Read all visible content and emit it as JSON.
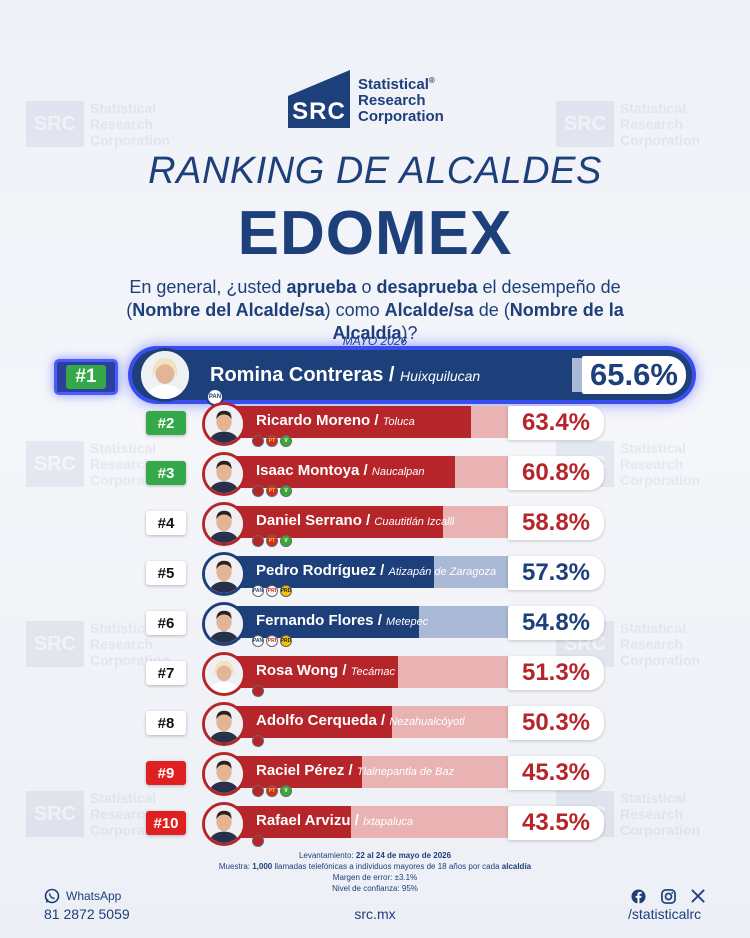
{
  "brand": {
    "mark": "SRC",
    "lines": [
      "Statistical",
      "Research",
      "Corporation"
    ],
    "registered": "®"
  },
  "header": {
    "title": "RANKING DE ALCALDES",
    "subtitle": "EDOMEX",
    "question_parts": [
      {
        "t": "En general, ¿usted ",
        "b": false
      },
      {
        "t": "aprueba",
        "b": true
      },
      {
        "t": " o ",
        "b": false
      },
      {
        "t": "desaprueba",
        "b": true
      },
      {
        "t": " el desempeño de (",
        "b": false
      },
      {
        "t": "Nombre del Alcalde/sa",
        "b": true
      },
      {
        "t": ") como ",
        "b": false
      },
      {
        "t": "Alcalde/sa",
        "b": true
      },
      {
        "t": " de (",
        "b": false
      },
      {
        "t": "Nombre de la Alcaldía",
        "b": true
      },
      {
        "t": ")?",
        "b": false
      }
    ],
    "date": "MAYO 2026"
  },
  "colors": {
    "pan_blue": "#1d3f7a",
    "pan_track": "#a9b9d6",
    "morena_red": "#b5252a",
    "morena_track": "#e9b3b3",
    "green_badge": "#35a84a",
    "red_badge": "#e02020",
    "highlight_border": "#3a4ef0"
  },
  "chart_data": {
    "type": "bar",
    "xlim": [
      0,
      100
    ],
    "rows": [
      {
        "rank": "#1",
        "name": "Romina Contreras",
        "municipality": "Huixquilucan",
        "value": 65.6,
        "label": "65.6%",
        "party": "pan",
        "badge": "green",
        "parties": [
          "PAN"
        ]
      },
      {
        "rank": "#2",
        "name": "Ricardo Moreno",
        "municipality": "Toluca",
        "value": 63.4,
        "label": "63.4%",
        "party": "morena",
        "badge": "green",
        "parties": [
          "",
          "PT",
          "V"
        ]
      },
      {
        "rank": "#3",
        "name": "Isaac Montoya",
        "municipality": "Naucalpan",
        "value": 60.8,
        "label": "60.8%",
        "party": "morena",
        "badge": "green",
        "parties": [
          "",
          "PT",
          "V"
        ]
      },
      {
        "rank": "#4",
        "name": "Daniel Serrano",
        "municipality": "Cuautitlán Izcalli",
        "value": 58.8,
        "label": "58.8%",
        "party": "morena",
        "badge": "white",
        "parties": [
          "",
          "PT",
          "V"
        ]
      },
      {
        "rank": "#5",
        "name": "Pedro Rodríguez",
        "municipality": "Atizapán de Zaragoza",
        "value": 57.3,
        "label": "57.3%",
        "party": "pan",
        "badge": "white",
        "parties": [
          "PAN",
          "PRI",
          "PRD"
        ]
      },
      {
        "rank": "#6",
        "name": "Fernando Flores",
        "municipality": "Metepec",
        "value": 54.8,
        "label": "54.8%",
        "party": "pan",
        "badge": "white",
        "parties": [
          "PAN",
          "PRI",
          "PRD"
        ]
      },
      {
        "rank": "#7",
        "name": "Rosa Wong",
        "municipality": "Tecámac",
        "value": 51.3,
        "label": "51.3%",
        "party": "morena",
        "badge": "white",
        "parties": [
          ""
        ]
      },
      {
        "rank": "#8",
        "name": "Adolfo Cerqueda",
        "municipality": "Nezahualcóyotl",
        "value": 50.3,
        "label": "50.3%",
        "party": "morena",
        "badge": "white",
        "parties": [
          ""
        ]
      },
      {
        "rank": "#9",
        "name": "Raciel Pérez",
        "municipality": "Tlalnepantla de Baz",
        "value": 45.3,
        "label": "45.3%",
        "party": "morena",
        "badge": "red",
        "parties": [
          "",
          "PT",
          "V"
        ]
      },
      {
        "rank": "#10",
        "name": "Rafael Arvizu",
        "municipality": "Ixtapaluca",
        "value": 43.5,
        "label": "43.5%",
        "party": "morena",
        "badge": "red",
        "parties": [
          ""
        ]
      }
    ]
  },
  "methodology": {
    "line1_label": "Levantamiento:",
    "line1_value": "22 al 24 de mayo de 2026",
    "line2_label": "Muestra:",
    "line2_sample": "1,000",
    "line2_mid": "llamadas telefónicas a individuos mayores de 18 años por cada",
    "line2_unit": "alcaldía",
    "line3": "Margen de error: ±3.1%",
    "line4": "Nivel de confianza: 95%"
  },
  "footer": {
    "whatsapp_label": "WhatsApp",
    "phone": "81 2872 5059",
    "website": "src.mx",
    "social_handle": "/statisticalrc",
    "social_icons": [
      "facebook-icon",
      "instagram-icon",
      "x-icon"
    ]
  }
}
